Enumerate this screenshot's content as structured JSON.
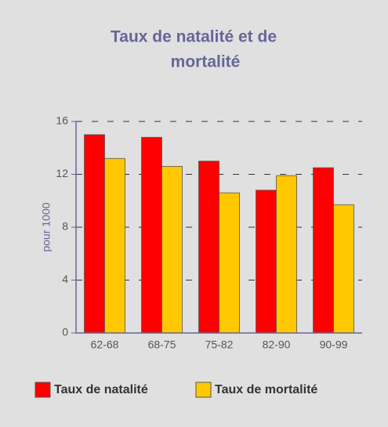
{
  "chart_data": {
    "type": "bar",
    "title": [
      "Taux de natalité et de",
      "mortalité"
    ],
    "y_label": "pour 1000",
    "categories": [
      "62-68",
      "68-75",
      "75-82",
      "82-90",
      "90-99"
    ],
    "series": [
      {
        "name": "Taux de natalité",
        "color": "#ff0000",
        "values": [
          15.0,
          14.8,
          13.0,
          10.8,
          12.5
        ]
      },
      {
        "name": "Taux de mortalité",
        "color": "#ffc800",
        "values": [
          13.2,
          12.6,
          10.6,
          11.9,
          9.7
        ]
      }
    ],
    "ylim": [
      0,
      16
    ],
    "yticks": [
      0,
      4,
      8,
      12,
      16
    ],
    "grid": true,
    "legend": "bottom"
  }
}
